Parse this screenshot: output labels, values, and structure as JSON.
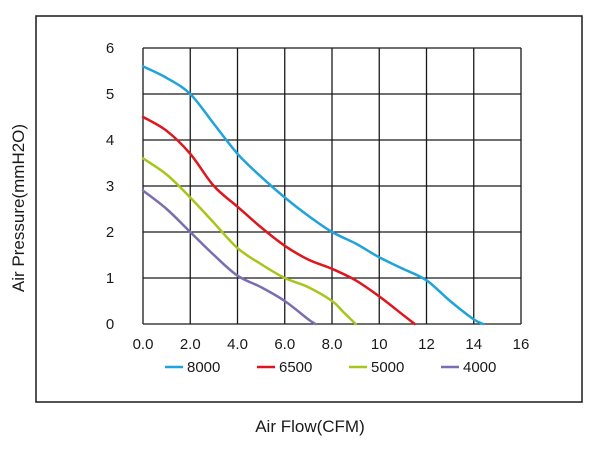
{
  "chart_data": {
    "type": "line",
    "xlabel": "Air Flow(CFM)",
    "ylabel": "Air Pressure(mmH2O)",
    "xlim": [
      0,
      16
    ],
    "ylim": [
      0,
      6
    ],
    "x_ticks": [
      "0.0",
      "2.0",
      "4.0",
      "6.0",
      "8.0",
      "10",
      "12",
      "14",
      "16"
    ],
    "y_ticks": [
      "0",
      "1",
      "2",
      "3",
      "4",
      "5",
      "6"
    ],
    "grid": true,
    "legend_position": "bottom",
    "series": [
      {
        "name": "8000",
        "color": "#1fa3dc",
        "points": [
          [
            0.0,
            5.6
          ],
          [
            1.0,
            5.35
          ],
          [
            2.0,
            5.0
          ],
          [
            3.0,
            4.35
          ],
          [
            4.0,
            3.7
          ],
          [
            5.0,
            3.2
          ],
          [
            6.0,
            2.75
          ],
          [
            7.0,
            2.35
          ],
          [
            8.0,
            2.0
          ],
          [
            9.0,
            1.75
          ],
          [
            10.0,
            1.45
          ],
          [
            11.0,
            1.2
          ],
          [
            12.0,
            0.95
          ],
          [
            13.0,
            0.5
          ],
          [
            14.0,
            0.1
          ],
          [
            14.4,
            0.0
          ]
        ]
      },
      {
        "name": "6500",
        "color": "#e0161e",
        "points": [
          [
            0.0,
            4.5
          ],
          [
            1.0,
            4.2
          ],
          [
            2.0,
            3.7
          ],
          [
            3.0,
            3.0
          ],
          [
            4.0,
            2.55
          ],
          [
            5.0,
            2.1
          ],
          [
            6.0,
            1.7
          ],
          [
            7.0,
            1.4
          ],
          [
            8.0,
            1.2
          ],
          [
            9.0,
            0.95
          ],
          [
            10.0,
            0.6
          ],
          [
            11.0,
            0.2
          ],
          [
            11.5,
            0.0
          ]
        ]
      },
      {
        "name": "5000",
        "color": "#a6c61c",
        "points": [
          [
            0.0,
            3.6
          ],
          [
            1.0,
            3.25
          ],
          [
            2.0,
            2.75
          ],
          [
            3.0,
            2.2
          ],
          [
            4.0,
            1.65
          ],
          [
            5.0,
            1.3
          ],
          [
            6.0,
            1.0
          ],
          [
            7.0,
            0.8
          ],
          [
            8.0,
            0.5
          ],
          [
            8.5,
            0.25
          ],
          [
            9.0,
            0.0
          ]
        ]
      },
      {
        "name": "4000",
        "color": "#7b6db0",
        "points": [
          [
            0.0,
            2.9
          ],
          [
            1.0,
            2.5
          ],
          [
            2.0,
            2.0
          ],
          [
            3.0,
            1.5
          ],
          [
            4.0,
            1.05
          ],
          [
            5.0,
            0.8
          ],
          [
            6.0,
            0.5
          ],
          [
            7.0,
            0.1
          ],
          [
            7.3,
            0.0
          ]
        ]
      }
    ]
  }
}
